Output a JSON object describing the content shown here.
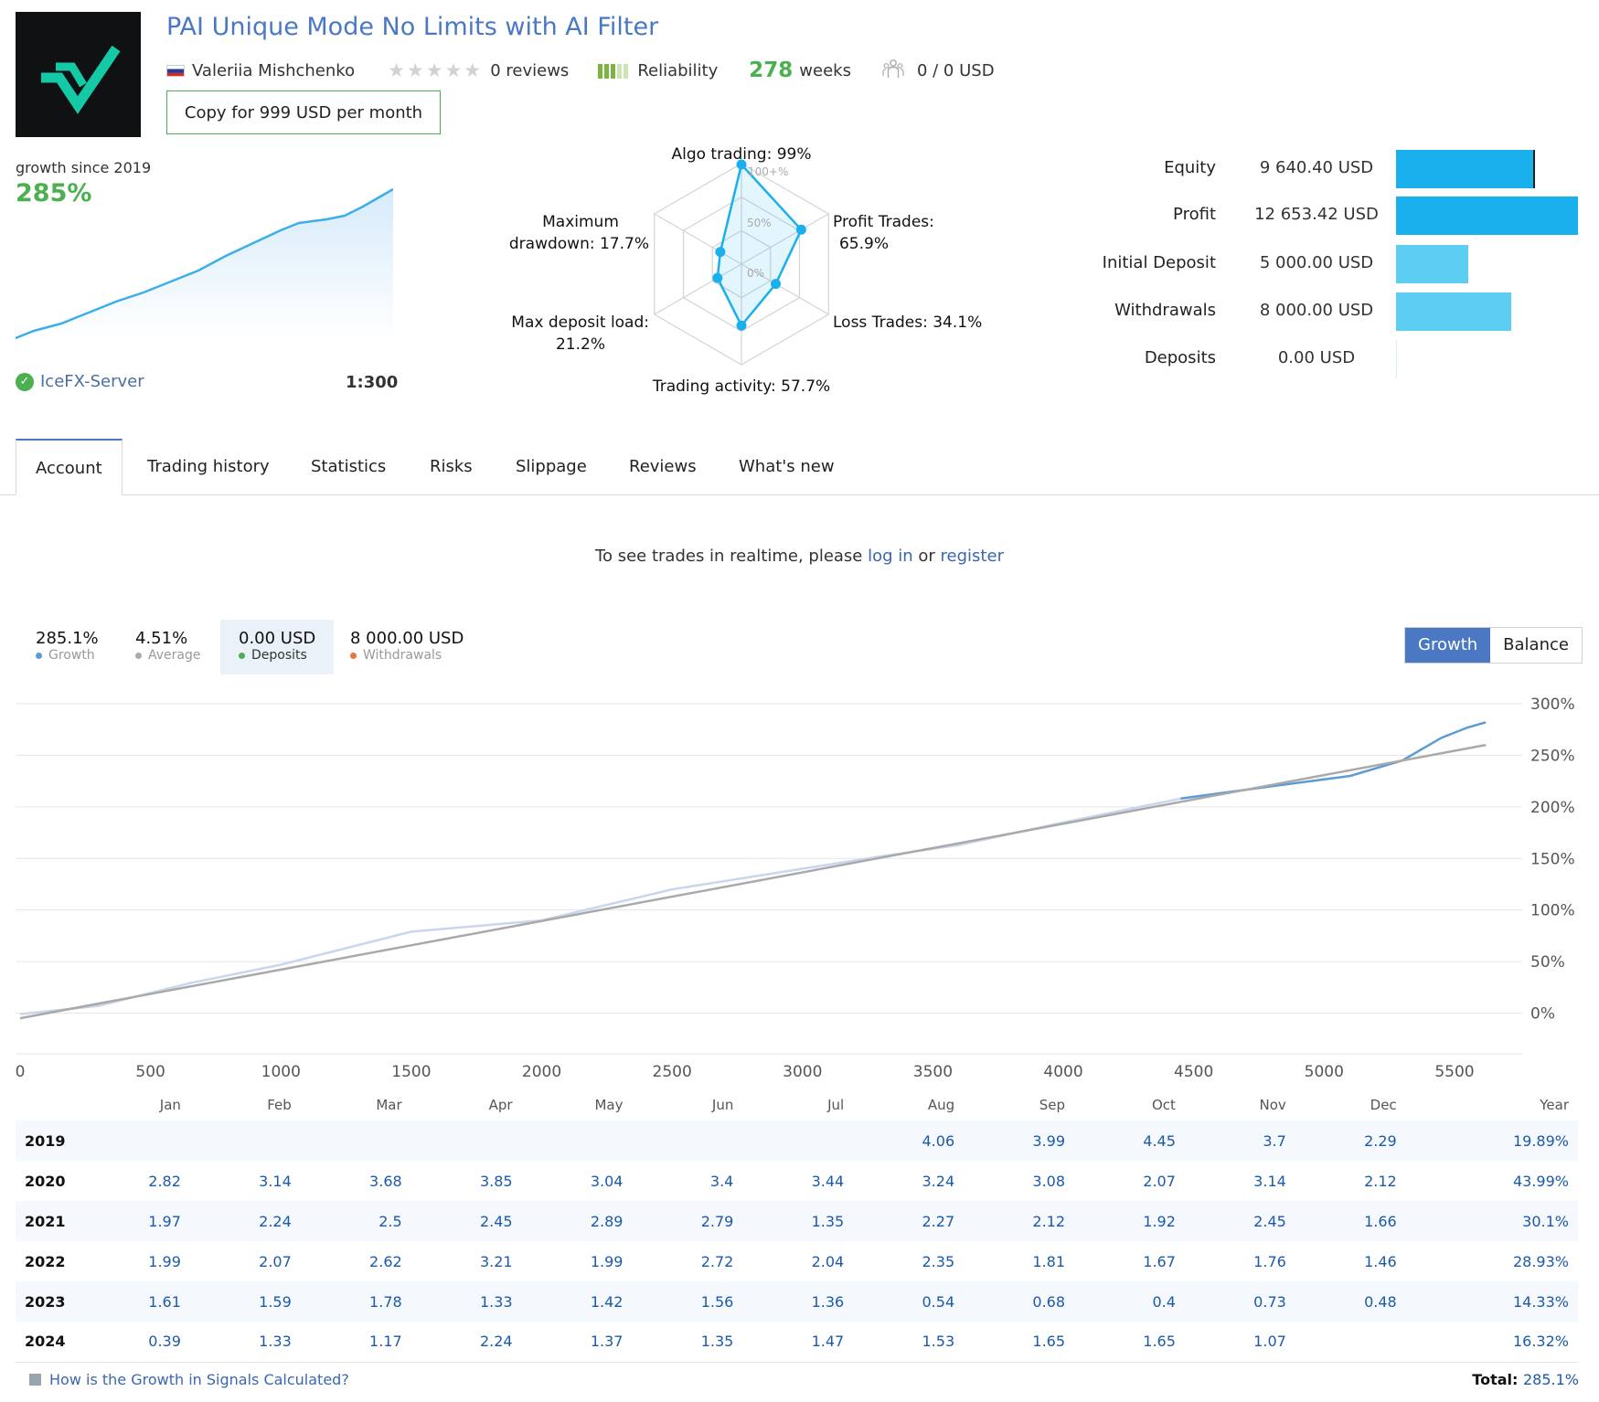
{
  "header": {
    "title": "PAI Unique Mode No Limits with AI Filter",
    "author": "Valeriia Mishchenko",
    "reviews": "0 reviews",
    "rating": 0,
    "reliability_label": "Reliability",
    "reliability_level": 3,
    "weeks_num": "278",
    "weeks_label": "weeks",
    "subscribers": "0 / 0 USD",
    "copy_button": "Copy for 999 USD per month"
  },
  "summary": {
    "growth_since": "growth since 2019",
    "growth_value": "285%",
    "server": "IceFX-Server",
    "leverage": "1:300"
  },
  "radar": {
    "labels": {
      "algo": "Algo trading: 99%",
      "profit": [
        "Profit Trades:",
        "65.9%"
      ],
      "loss": "Loss Trades: 34.1%",
      "activity": "Trading activity: 57.7%",
      "load": [
        "Max deposit load:",
        "21.2%"
      ],
      "drawdown": [
        "Maximum",
        "drawdown: 17.7%"
      ]
    },
    "ring_labels": [
      "100+%",
      "50%",
      "0%"
    ],
    "values": [
      99,
      65.9,
      34.1,
      57.7,
      21.2,
      17.7
    ]
  },
  "financials": [
    {
      "label": "Equity",
      "value": "9 640.40 USD",
      "amount": 9640.4
    },
    {
      "label": "Profit",
      "value": "12 653.42 USD",
      "amount": 12653.42
    },
    {
      "label": "Initial Deposit",
      "value": "5 000.00 USD",
      "amount": 5000.0
    },
    {
      "label": "Withdrawals",
      "value": "8 000.00 USD",
      "amount": 8000.0
    },
    {
      "label": "Deposits",
      "value": "0.00 USD",
      "amount": 0
    }
  ],
  "tabs": [
    "Account",
    "Trading history",
    "Statistics",
    "Risks",
    "Slippage",
    "Reviews",
    "What's new"
  ],
  "notice": {
    "prefix": "To see trades in realtime, please ",
    "login": "log in",
    "middle": " or ",
    "register": "register"
  },
  "stats": [
    {
      "value": "285.1%",
      "label": "Growth",
      "color": "#5b9bd5"
    },
    {
      "value": "4.51%",
      "label": "Average",
      "color": "#aaaaaa"
    },
    {
      "value": "0.00 USD",
      "label": "Deposits",
      "color": "#4caf50"
    },
    {
      "value": "8 000.00 USD",
      "label": "Withdrawals",
      "color": "#e8743b"
    }
  ],
  "toggle": {
    "growth": "Growth",
    "balance": "Balance"
  },
  "colors": {
    "accent": "#4a78c2",
    "green": "#4caf50",
    "bar_dark": "#1ab0ed",
    "bar_light": "#5ecdf2"
  },
  "chart_data": {
    "type": "line",
    "x_ticks": [
      0,
      500,
      1000,
      1500,
      2000,
      2500,
      3000,
      3500,
      4000,
      4500,
      5000,
      5500
    ],
    "y_ticks": [
      "300%",
      "250%",
      "200%",
      "150%",
      "100%",
      "50%",
      "0%"
    ],
    "xlim": [
      0,
      5700
    ],
    "ylim": [
      -35,
      300
    ],
    "series": [
      {
        "name": "Growth",
        "x": [
          0,
          300,
          650,
          1000,
          1500,
          2000,
          2500,
          3000,
          3300,
          3600,
          4000,
          4450,
          4800,
          5100,
          5300,
          5450,
          5550,
          5620
        ],
        "y": [
          -1,
          7,
          29,
          47,
          79,
          90,
          120,
          140,
          152,
          163,
          185,
          208,
          220,
          230,
          245,
          267,
          277,
          282
        ]
      },
      {
        "name": "Average",
        "x": [
          0,
          5620
        ],
        "y": [
          -5,
          260
        ]
      }
    ]
  },
  "monthly": {
    "headers": [
      "",
      "Jan",
      "Feb",
      "Mar",
      "Apr",
      "May",
      "Jun",
      "Jul",
      "Aug",
      "Sep",
      "Oct",
      "Nov",
      "Dec",
      "Year"
    ],
    "rows": [
      [
        "2019",
        "",
        "",
        "",
        "",
        "",
        "",
        "",
        "4.06",
        "3.99",
        "4.45",
        "3.7",
        "2.29",
        "19.89%"
      ],
      [
        "2020",
        "2.82",
        "3.14",
        "3.68",
        "3.85",
        "3.04",
        "3.4",
        "3.44",
        "3.24",
        "3.08",
        "2.07",
        "3.14",
        "2.12",
        "43.99%"
      ],
      [
        "2021",
        "1.97",
        "2.24",
        "2.5",
        "2.45",
        "2.89",
        "2.79",
        "1.35",
        "2.27",
        "2.12",
        "1.92",
        "2.45",
        "1.66",
        "30.1%"
      ],
      [
        "2022",
        "1.99",
        "2.07",
        "2.62",
        "3.21",
        "1.99",
        "2.72",
        "2.04",
        "2.35",
        "1.81",
        "1.67",
        "1.76",
        "1.46",
        "28.93%"
      ],
      [
        "2023",
        "1.61",
        "1.59",
        "1.78",
        "1.33",
        "1.42",
        "1.56",
        "1.36",
        "0.54",
        "0.68",
        "0.4",
        "0.73",
        "0.48",
        "14.33%"
      ],
      [
        "2024",
        "0.39",
        "1.33",
        "1.17",
        "2.24",
        "1.37",
        "1.35",
        "1.47",
        "1.53",
        "1.65",
        "1.65",
        "1.07",
        "",
        "16.32%"
      ]
    ]
  },
  "footer": {
    "faq": "How is the Growth in Signals Calculated?",
    "total_label": "Total:",
    "total_value": "285.1%"
  }
}
